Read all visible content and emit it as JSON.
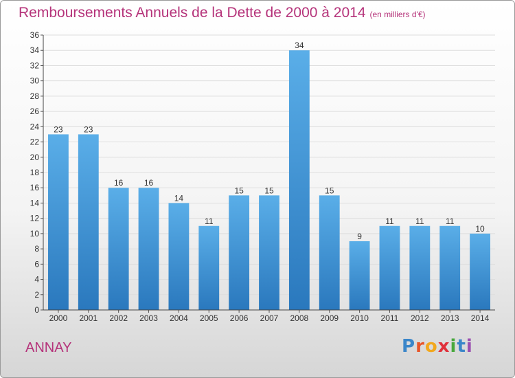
{
  "header": {
    "title": "Remboursements Annuels de la Dette de 2000 à 2014",
    "unit": "(en milliers d'€)"
  },
  "footer": {
    "commune": "ANNAY",
    "logo": "Proxiti"
  },
  "colors": {
    "title": "#b5337a",
    "bar_top": "#5aaee8",
    "bar_bottom": "#2a78bd",
    "grid": "#dddddd"
  },
  "chart_data": {
    "type": "bar",
    "title": "Remboursements Annuels de la Dette de 2000 à 2014",
    "subtitle": "(en milliers d'€)",
    "xlabel": "",
    "ylabel": "",
    "categories": [
      "2000",
      "2001",
      "2002",
      "2003",
      "2004",
      "2005",
      "2006",
      "2007",
      "2008",
      "2009",
      "2010",
      "2011",
      "2012",
      "2013",
      "2014"
    ],
    "values": [
      23,
      23,
      16,
      16,
      14,
      11,
      15,
      15,
      34,
      15,
      9,
      11,
      11,
      11,
      10
    ],
    "ylim": [
      0,
      36
    ],
    "ytick_step": 2,
    "grid": true,
    "data_labels": true
  }
}
